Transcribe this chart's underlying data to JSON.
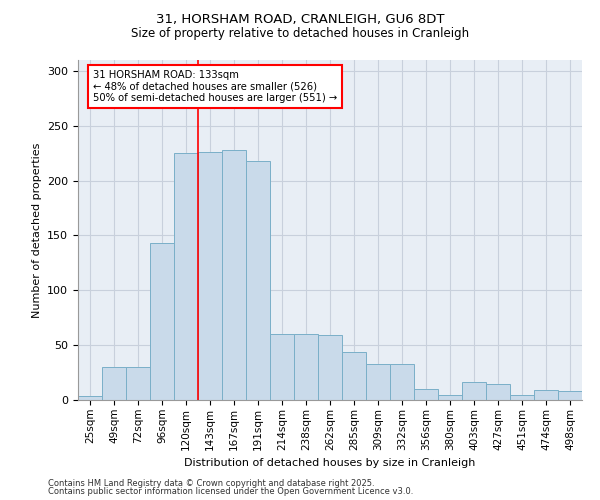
{
  "title_line1": "31, HORSHAM ROAD, CRANLEIGH, GU6 8DT",
  "title_line2": "Size of property relative to detached houses in Cranleigh",
  "xlabel": "Distribution of detached houses by size in Cranleigh",
  "ylabel": "Number of detached properties",
  "bar_color": "#c9daea",
  "bar_edge_color": "#7aafc8",
  "grid_color": "#c8d0dc",
  "background_color": "#e8eef5",
  "categories": [
    "25sqm",
    "49sqm",
    "72sqm",
    "96sqm",
    "120sqm",
    "143sqm",
    "167sqm",
    "191sqm",
    "214sqm",
    "238sqm",
    "262sqm",
    "285sqm",
    "309sqm",
    "332sqm",
    "356sqm",
    "380sqm",
    "403sqm",
    "427sqm",
    "451sqm",
    "474sqm",
    "498sqm"
  ],
  "values": [
    4,
    30,
    30,
    143,
    225,
    226,
    228,
    218,
    60,
    60,
    59,
    44,
    33,
    33,
    10,
    5,
    16,
    15,
    5,
    9,
    8
  ],
  "ylim": [
    0,
    310
  ],
  "yticks": [
    0,
    50,
    100,
    150,
    200,
    250,
    300
  ],
  "property_label": "31 HORSHAM ROAD: 133sqm",
  "pct_smaller": "48% of detached houses are smaller (526)",
  "pct_larger": "50% of semi-detached houses are larger (551)",
  "vline_x": 4.5,
  "footer1": "Contains HM Land Registry data © Crown copyright and database right 2025.",
  "footer2": "Contains public sector information licensed under the Open Government Licence v3.0."
}
